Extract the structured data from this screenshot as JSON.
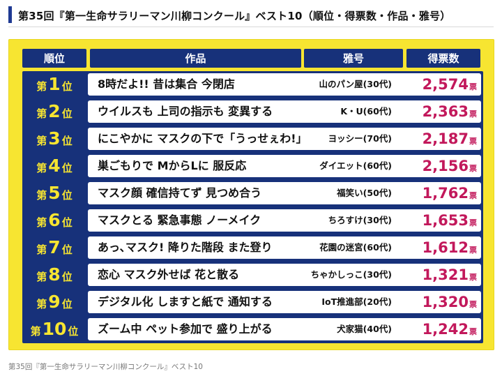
{
  "heading": "第35回『第一生命サラリーマン川柳コンクール』ベスト10（順位・得票数・作品・雅号）",
  "table": {
    "headers": {
      "rank": "順位",
      "work": "作品",
      "author": "雅号",
      "votes": "得票数"
    },
    "rank_prefix": "第",
    "rank_suffix": "位",
    "votes_unit": "票",
    "rows": [
      {
        "rank": "1",
        "work": "8時だよ!! 昔は集合 今閉店",
        "author": "山のパン屋(30代)",
        "votes": "2,574"
      },
      {
        "rank": "2",
        "work": "ウイルスも 上司の指示も 変異する",
        "author": "K・U(60代)",
        "votes": "2,363"
      },
      {
        "rank": "3",
        "work": "にこやかに マスクの下で「うっせぇわ!」",
        "author": "ヨッシー(70代)",
        "votes": "2,187"
      },
      {
        "rank": "4",
        "work": "巣ごもりで MからLに 服反応",
        "author": "ダイエット(60代)",
        "votes": "2,156"
      },
      {
        "rank": "5",
        "work": "マスク顔 確信持てず 見つめ合う",
        "author": "福笑い(50代)",
        "votes": "1,762"
      },
      {
        "rank": "6",
        "work": "マスクとる 緊急事態 ノーメイク",
        "author": "ちろすけ(30代)",
        "votes": "1,653"
      },
      {
        "rank": "7",
        "work": "あっ､マスク! 降りた階段 また登り",
        "author": "花園の迷宮(60代)",
        "votes": "1,612"
      },
      {
        "rank": "8",
        "work": "恋心 マスク外せば 花と散る",
        "author": "ちゃかしっこ(30代)",
        "votes": "1,321"
      },
      {
        "rank": "9",
        "work": "デジタル化 しますと紙で 通知する",
        "author": "IoT推進部(20代)",
        "votes": "1,320"
      },
      {
        "rank": "10",
        "work": "ズーム中 ペット参加で 盛り上がる",
        "author": "犬家猫(40代)",
        "votes": "1,242"
      }
    ]
  },
  "caption": "第35回『第一生命サラリーマン川柳コンクール』ベスト10",
  "colors": {
    "navy": "#17317a",
    "yellow": "#f7e531",
    "votes_pink": "#c2185b"
  }
}
